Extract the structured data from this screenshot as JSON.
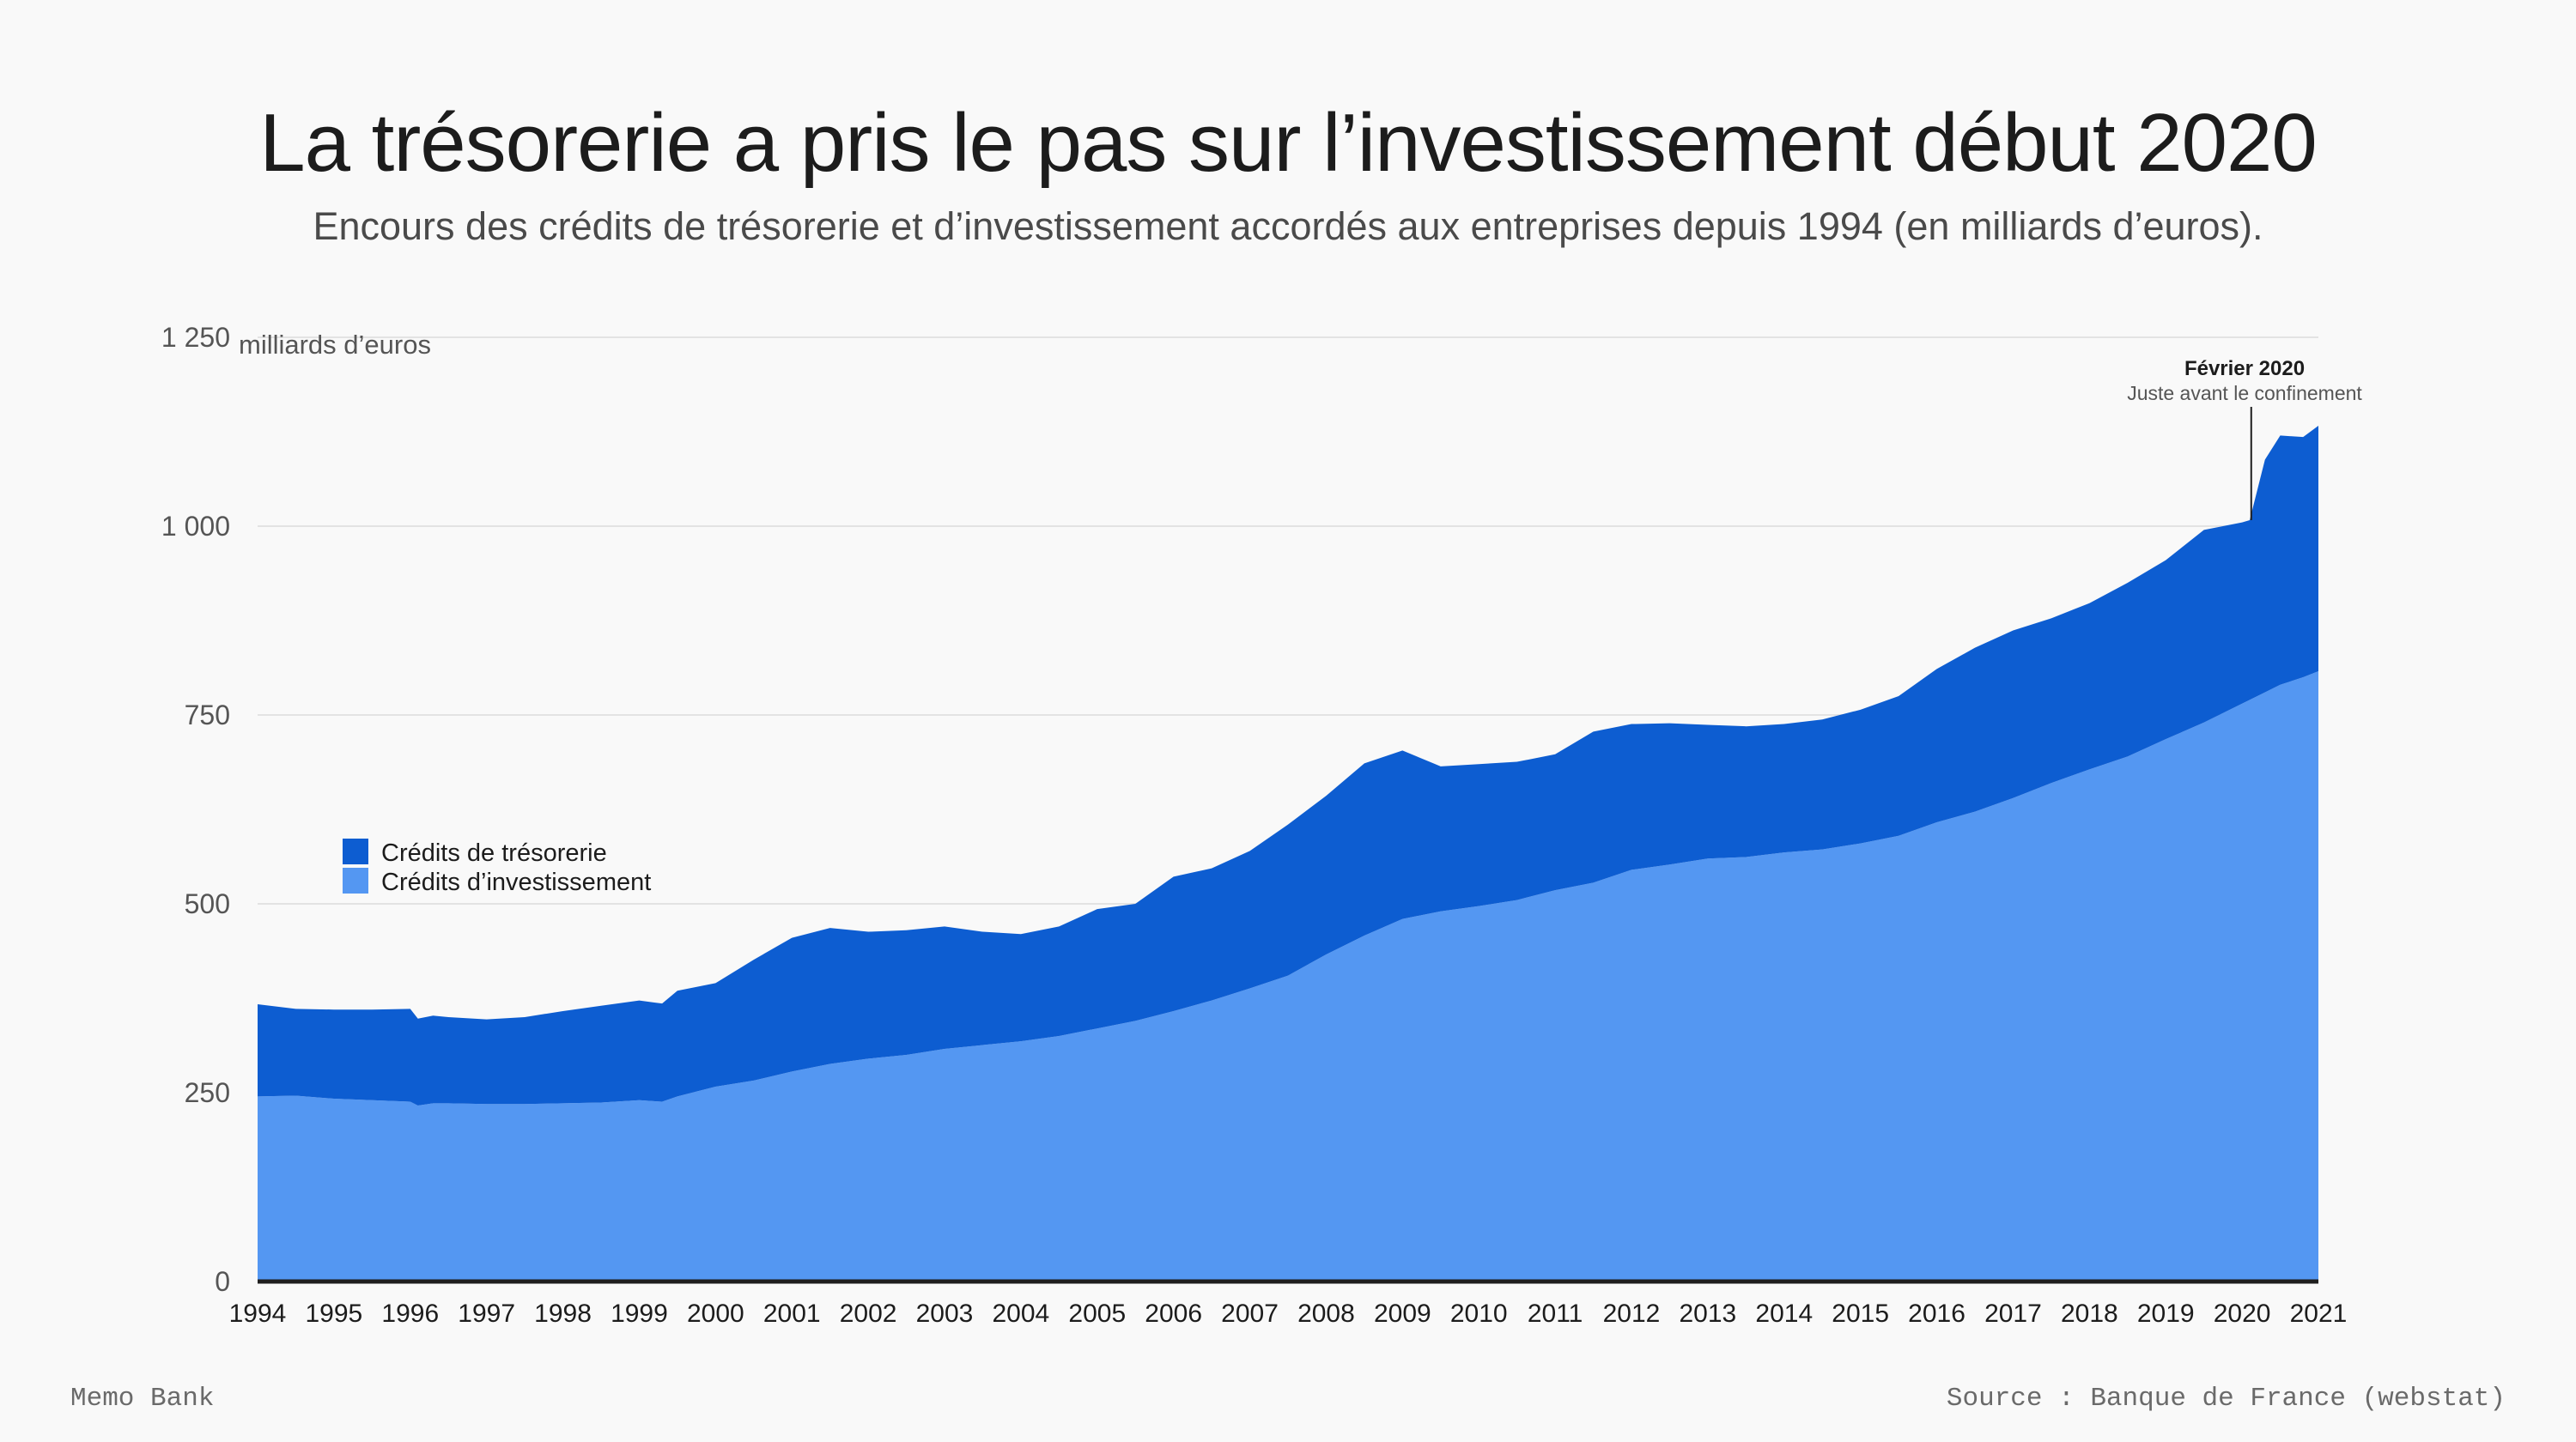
{
  "title": "La trésorerie a pris le pas sur l’investissement début 2020",
  "subtitle": "Encours des crédits de trésorerie et d’investissement accordés aux entreprises depuis 1994 (en milliards d’euros).",
  "footer": {
    "brand": "Memo Bank",
    "source": "Source : Banque de France (webstat)"
  },
  "colors": {
    "tresorerie": "#0d5dd1",
    "investissement": "#5497f2",
    "axis": "#1f1f1f",
    "grid": "#e3e3e3"
  },
  "chart_data": {
    "type": "area",
    "stacked": true,
    "y_unit_label": "milliards d’euros",
    "ylim": [
      0,
      1250
    ],
    "xlim": [
      1994,
      2021
    ],
    "y_ticks": [
      0,
      250,
      500,
      750,
      1000,
      1250
    ],
    "y_tick_labels": [
      "0",
      "250",
      "500",
      "750",
      "1 000",
      "1 250"
    ],
    "x_ticks": [
      1994,
      1995,
      1996,
      1997,
      1998,
      1999,
      2000,
      2001,
      2002,
      2003,
      2004,
      2005,
      2006,
      2007,
      2008,
      2009,
      2010,
      2011,
      2012,
      2013,
      2014,
      2015,
      2016,
      2017,
      2018,
      2019,
      2020,
      2021
    ],
    "grid": true,
    "legend_position": "left-middle",
    "x": [
      1994,
      1994.5,
      1995,
      1995.5,
      1996,
      1996.1,
      1996.3,
      1996.5,
      1997,
      1997.5,
      1998,
      1998.5,
      1999,
      1999.3,
      1999.5,
      2000,
      2000.5,
      2001,
      2001.5,
      2002,
      2002.5,
      2003,
      2003.5,
      2004,
      2004.5,
      2005,
      2005.5,
      2006,
      2006.5,
      2007,
      2007.5,
      2008,
      2008.5,
      2009,
      2009.5,
      2010,
      2010.5,
      2011,
      2011.5,
      2012,
      2012.5,
      2013,
      2013.5,
      2014,
      2014.5,
      2015,
      2015.5,
      2016,
      2016.5,
      2017,
      2017.5,
      2018,
      2018.5,
      2019,
      2019.5,
      2020,
      2020.1,
      2020.3,
      2020.5,
      2020.8,
      2021
    ],
    "series": [
      {
        "name": "Crédits d’investissement",
        "values": [
          245,
          246,
          242,
          240,
          238,
          233,
          236,
          236,
          235,
          235,
          236,
          237,
          240,
          238,
          245,
          258,
          266,
          278,
          288,
          295,
          300,
          308,
          313,
          318,
          325,
          335,
          345,
          358,
          372,
          388,
          405,
          433,
          458,
          480,
          490,
          497,
          505,
          518,
          528,
          545,
          552,
          560,
          562,
          568,
          572,
          580,
          590,
          608,
          622,
          640,
          660,
          678,
          695,
          718,
          740,
          765,
          770,
          780,
          790,
          800,
          808
        ]
      },
      {
        "name": "Crédits de trésorerie",
        "values": [
          122,
          115,
          118,
          120,
          123,
          115,
          116,
          114,
          112,
          115,
          122,
          128,
          132,
          130,
          140,
          137,
          160,
          177,
          180,
          168,
          165,
          162,
          150,
          142,
          145,
          158,
          155,
          178,
          175,
          182,
          200,
          210,
          228,
          223,
          192,
          188,
          183,
          180,
          200,
          193,
          187,
          177,
          173,
          170,
          172,
          177,
          185,
          203,
          217,
          222,
          218,
          220,
          230,
          237,
          255,
          240,
          238,
          308,
          330,
          318,
          325
        ]
      }
    ],
    "annotation": {
      "x": 2020.12,
      "y": 1008,
      "title": "Février 2020",
      "text": "Juste avant le confinement"
    }
  }
}
